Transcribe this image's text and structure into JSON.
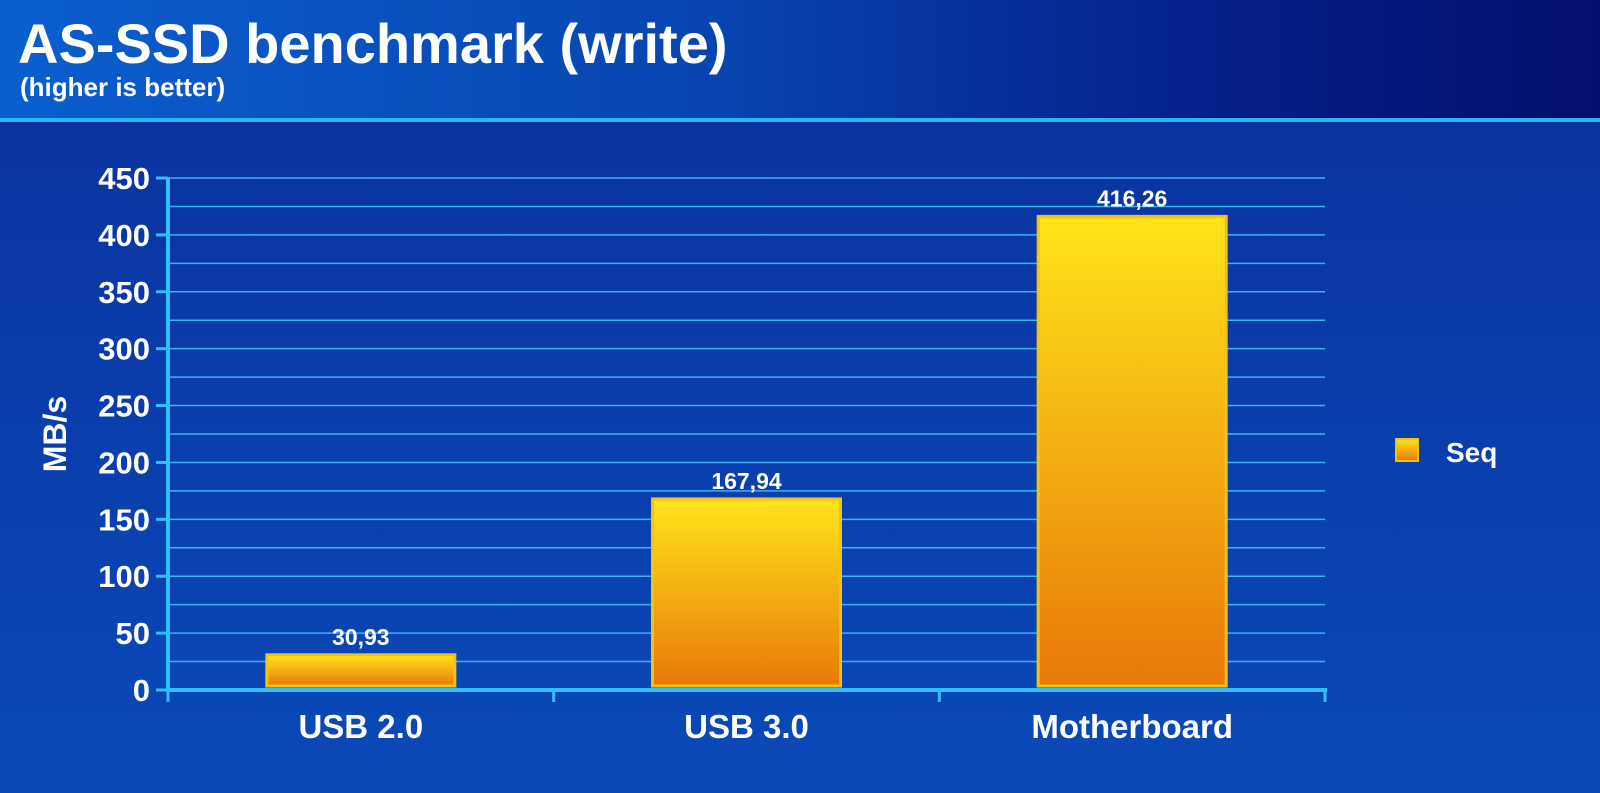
{
  "header": {
    "title": "AS-SSD benchmark (write)",
    "subtitle": "(higher is better)"
  },
  "colors": {
    "background": "#0a3aa8",
    "header_rule": "#27b6f0",
    "gridline": "#3fb0f0",
    "axis": "#2fc0ff",
    "bar_top": "#ffe51a",
    "bar_bottom": "#e8780a",
    "bar_border": "#f2c21a"
  },
  "chart_data": {
    "type": "bar",
    "categories": [
      "USB 2.0",
      "USB 3.0",
      "Motherboard"
    ],
    "series": [
      {
        "name": "Seq",
        "values": [
          30.93,
          167.94,
          416.26
        ]
      }
    ],
    "data_labels": [
      "30,93",
      "167,94",
      "416,26"
    ],
    "ylabel": "MB/s",
    "ylim": [
      0,
      450
    ],
    "yticks": [
      0,
      50,
      100,
      150,
      200,
      250,
      300,
      350,
      400,
      450
    ],
    "grid": true,
    "minor_grid_step": 25,
    "legend": {
      "position": "right",
      "entries": [
        "Seq"
      ]
    }
  }
}
